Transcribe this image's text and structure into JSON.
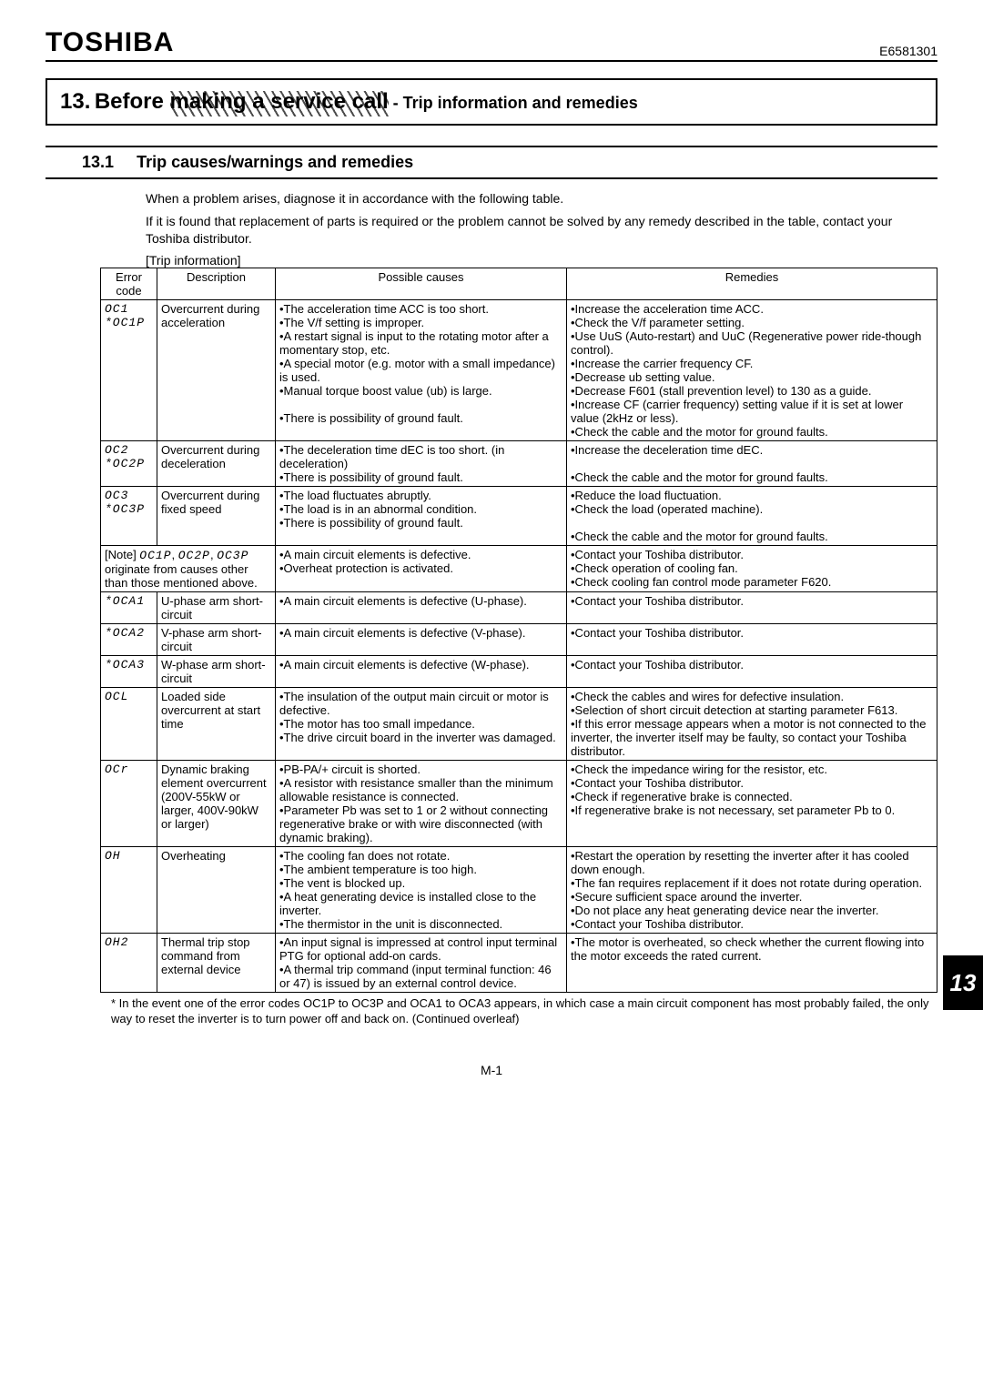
{
  "brand": "TOSHIBA",
  "doc_number": "E6581301",
  "chapter": {
    "number": "13.",
    "title_main": "Before ",
    "title_hatched": "making a service call",
    "subtitle": " - Trip information and remedies"
  },
  "section": {
    "number": "13.1",
    "title": "Trip causes/warnings and remedies"
  },
  "intro_lines": [
    "When a problem arises, diagnose it in accordance with the following table.",
    "If it is found that replacement of parts is required or the problem cannot be solved by any remedy described in the table, contact your Toshiba distributor."
  ],
  "table_label": "[Trip information]",
  "headers": {
    "err": "Error code",
    "desc": "Description",
    "cause": "Possible causes",
    "rem": "Remedies"
  },
  "rows": [
    {
      "codes": [
        "OC1",
        "*OC1P"
      ],
      "desc": "Overcurrent during acceleration",
      "causes": "•The acceleration time ACC is too short.\n•The V/f setting is improper.\n•A restart signal is input to the rotating motor after a momentary stop, etc.\n•A special motor (e.g. motor with a small impedance) is used.\n•Manual torque boost value (ub) is large.\n\n•There is possibility of ground fault.",
      "remedies": "•Increase the acceleration time ACC.\n•Check the V/f parameter setting.\n•Use UuS (Auto-restart) and UuC (Regenerative power ride-though control).\n•Increase the carrier frequency CF.\n•Decrease ub setting value.\n•Decrease F601 (stall prevention level) to 130 as a guide.\n•Increase CF (carrier frequency) setting value if it is set at lower value (2kHz or less).\n•Check the cable and the motor for ground faults."
    },
    {
      "codes": [
        "OC2",
        "*OC2P"
      ],
      "desc": "Overcurrent during deceleration",
      "causes": "•The deceleration time dEC is too short. (in deceleration)\n•There is possibility of ground fault.",
      "remedies": "•Increase the deceleration time dEC.\n\n•Check the cable and the motor for ground faults."
    },
    {
      "codes": [
        "OC3",
        "*OC3P"
      ],
      "desc": "Overcurrent during fixed speed",
      "causes": "•The load fluctuates abruptly.\n•The load is in an abnormal condition.\n•There is possibility of ground fault.",
      "remedies": "•Reduce the load fluctuation.\n•Check the load (operated machine).\n\n•Check the cable and the motor for ground faults."
    },
    {
      "note_row": true,
      "note": "[Note] OC1P, OC2P, OC3P originate from causes other than those mentioned above.",
      "causes": "•A main circuit elements is defective.\n•Overheat protection is activated.",
      "remedies": "•Contact your Toshiba distributor.\n•Check operation of cooling fan.\n•Check cooling fan control mode parameter F620."
    },
    {
      "codes": [
        "*OCA1"
      ],
      "desc": "U-phase arm short-circuit",
      "causes": "•A main circuit elements is defective (U-phase).",
      "remedies": "•Contact your Toshiba distributor."
    },
    {
      "codes": [
        "*OCA2"
      ],
      "desc": "V-phase arm short-circuit",
      "causes": "•A main circuit elements is defective (V-phase).",
      "remedies": "•Contact your Toshiba distributor."
    },
    {
      "codes": [
        "*OCA3"
      ],
      "desc": "W-phase arm short-circuit",
      "causes": "•A main circuit elements is defective (W-phase).",
      "remedies": "•Contact your Toshiba distributor."
    },
    {
      "codes": [
        "OCL"
      ],
      "desc": "Loaded side overcurrent at start time",
      "causes": "•The insulation of the output main circuit or motor is defective.\n•The motor has too small impedance.\n•The drive circuit board in the inverter was damaged.",
      "remedies": "•Check the cables and wires for defective insulation.\n•Selection of short circuit detection at starting parameter F613.\n•If this error message appears when a motor is not connected to the inverter, the inverter itself may be faulty, so contact your Toshiba distributor."
    },
    {
      "codes": [
        "OCr"
      ],
      "desc": "Dynamic braking element overcurrent (200V-55kW or larger, 400V-90kW or larger)",
      "causes": "•PB-PA/+ circuit is shorted.\n•A resistor with resistance smaller than the minimum allowable resistance is connected.\n•Parameter Pb was set to 1 or 2 without connecting regenerative brake or with wire disconnected (with dynamic braking).",
      "remedies": "•Check the impedance wiring for the resistor, etc.\n•Contact your Toshiba distributor.\n•Check if regenerative brake is connected.\n•If regenerative brake is not necessary, set parameter Pb to 0."
    },
    {
      "codes": [
        "OH"
      ],
      "desc": "Overheating",
      "causes": "•The cooling fan does not rotate.\n•The ambient temperature is too high.\n•The vent is blocked up.\n•A heat generating device is installed close to the inverter.\n•The thermistor in the unit is disconnected.",
      "remedies": "•Restart the operation by resetting the inverter after it has cooled down enough.\n•The fan requires replacement if it does not rotate during operation.\n•Secure sufficient space around the inverter.\n•Do not place any heat generating device near the inverter.\n•Contact your Toshiba distributor."
    },
    {
      "codes": [
        "OH2"
      ],
      "desc": "Thermal trip stop command from external device",
      "causes": "•An input signal is impressed at control input terminal PTG for optional add-on cards.\n•A thermal trip command (input terminal function: 46 or 47) is issued by an external control device.",
      "remedies": "•The motor is overheated, so check whether the current flowing into the motor exceeds the rated current."
    }
  ],
  "footnote": "*  In the event one of the error codes OC1P to OC3P and OCA1 to OCA3 appears, in which case a main circuit component has most probably failed, the only way to reset the inverter is to turn power off and back on. (Continued overleaf)",
  "page_number": "M-1",
  "side_tab": "13"
}
